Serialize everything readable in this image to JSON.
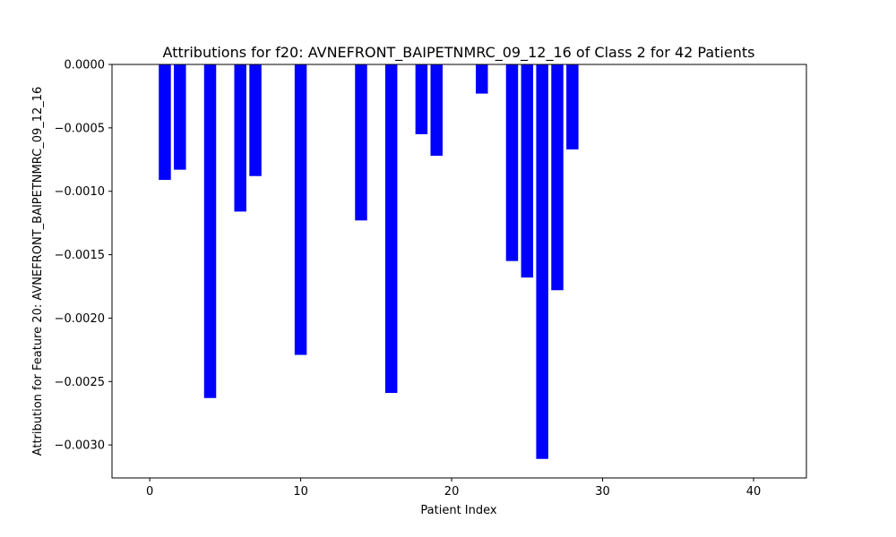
{
  "chart_data": {
    "type": "bar",
    "title": "Attributions for f20: AVNEFRONT_BAIPETNMRC_09_12_16 of Class 2 for 42 Patients",
    "xlabel": "Patient Index",
    "ylabel": "Attribution for Feature 20: AVNEFRONT_BAIPETNMRC_09_12_16",
    "xlim": [
      -2.5,
      43.5
    ],
    "ylim": [
      -0.00326,
      0.0
    ],
    "x_ticks": [
      0,
      10,
      20,
      30,
      40
    ],
    "x_tick_labels": [
      "0",
      "10",
      "20",
      "30",
      "40"
    ],
    "y_ticks": [
      0.0,
      -0.0005,
      -0.001,
      -0.0015,
      -0.002,
      -0.0025,
      -0.003
    ],
    "y_tick_labels": [
      "0.0000",
      "−0.0005",
      "−0.0010",
      "−0.0015",
      "−0.0020",
      "−0.0025",
      "−0.0030"
    ],
    "bar_color": "#0000ff",
    "bar_width": 0.8,
    "x": [
      1,
      2,
      4,
      6,
      7,
      10,
      14,
      16,
      18,
      19,
      22,
      24,
      25,
      26,
      27,
      28
    ],
    "values": [
      -0.00091,
      -0.00083,
      -0.00263,
      -0.00116,
      -0.00088,
      -0.00229,
      -0.00123,
      -0.00259,
      -0.00055,
      -0.00072,
      -0.00023,
      -0.00155,
      -0.00168,
      -0.00311,
      -0.00178,
      -0.00067
    ]
  }
}
